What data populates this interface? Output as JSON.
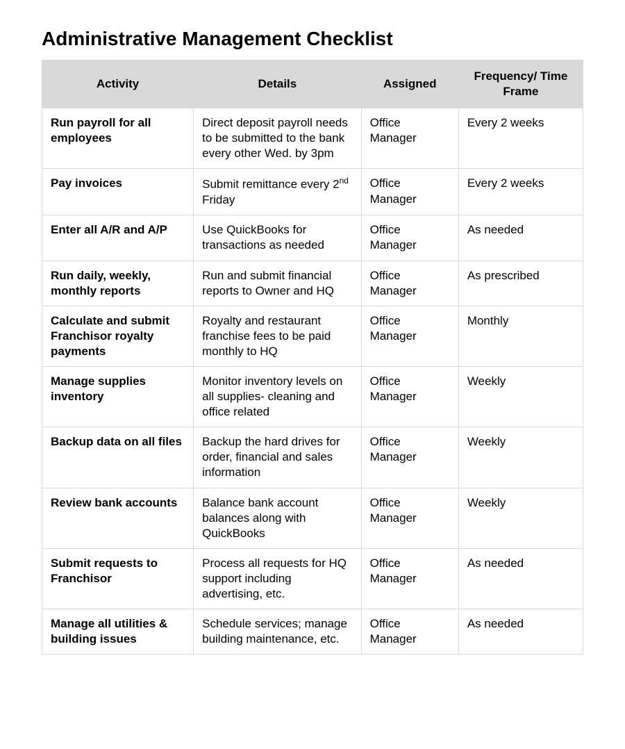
{
  "title": "Administrative Management Checklist",
  "table": {
    "type": "table",
    "background_color": "#ffffff",
    "border_color": "#d9d9d9",
    "header_bg": "#d9d9d9",
    "text_color": "#000000",
    "font_family": "Arial",
    "title_fontsize": 28,
    "cell_fontsize": 17,
    "column_widths_pct": [
      28,
      31,
      18,
      23
    ],
    "columns": [
      "Activity",
      "Details",
      "Assigned",
      "Frequency/ Time Frame"
    ],
    "rows": [
      {
        "activity": "Run payroll for all employees",
        "details": "Direct deposit payroll needs to be submitted to the bank every other Wed. by 3pm",
        "assigned": "Office Manager",
        "frequency": "Every 2 weeks"
      },
      {
        "activity": "Pay invoices",
        "details_html": "Submit remittance every 2<sup>nd</sup> Friday",
        "details": "Submit remittance every 2nd Friday",
        "assigned": "Office Manager",
        "frequency": "Every 2 weeks"
      },
      {
        "activity": "Enter all A/R and A/P",
        "details": "Use QuickBooks for transactions as needed",
        "assigned": "Office Manager",
        "frequency": "As needed"
      },
      {
        "activity": "Run daily, weekly, monthly reports",
        "details": "Run and submit financial reports to Owner and HQ",
        "assigned": "Office Manager",
        "frequency": "As prescribed"
      },
      {
        "activity": "Calculate and submit Franchisor royalty payments",
        "details": "Royalty and restaurant franchise fees to be paid monthly to HQ",
        "assigned": "Office Manager",
        "frequency": "Monthly"
      },
      {
        "activity": "Manage supplies inventory",
        "details": "Monitor inventory levels on all supplies- cleaning and office related",
        "assigned": "Office Manager",
        "frequency": "Weekly"
      },
      {
        "activity": "Backup data on all files",
        "details": "Backup the hard drives for order, financial and sales information",
        "assigned": "Office Manager",
        "frequency": "Weekly"
      },
      {
        "activity": "Review bank accounts",
        "details": "Balance bank account balances along with QuickBooks",
        "assigned": "Office Manager",
        "frequency": "Weekly"
      },
      {
        "activity": "Submit requests to Franchisor",
        "details": "Process all requests for HQ support including advertising, etc.",
        "assigned": "Office Manager",
        "frequency": "As needed"
      },
      {
        "activity": "Manage all utilities & building issues",
        "details": "Schedule services; manage building maintenance, etc.",
        "assigned": "Office Manager",
        "frequency": "As needed"
      }
    ]
  }
}
